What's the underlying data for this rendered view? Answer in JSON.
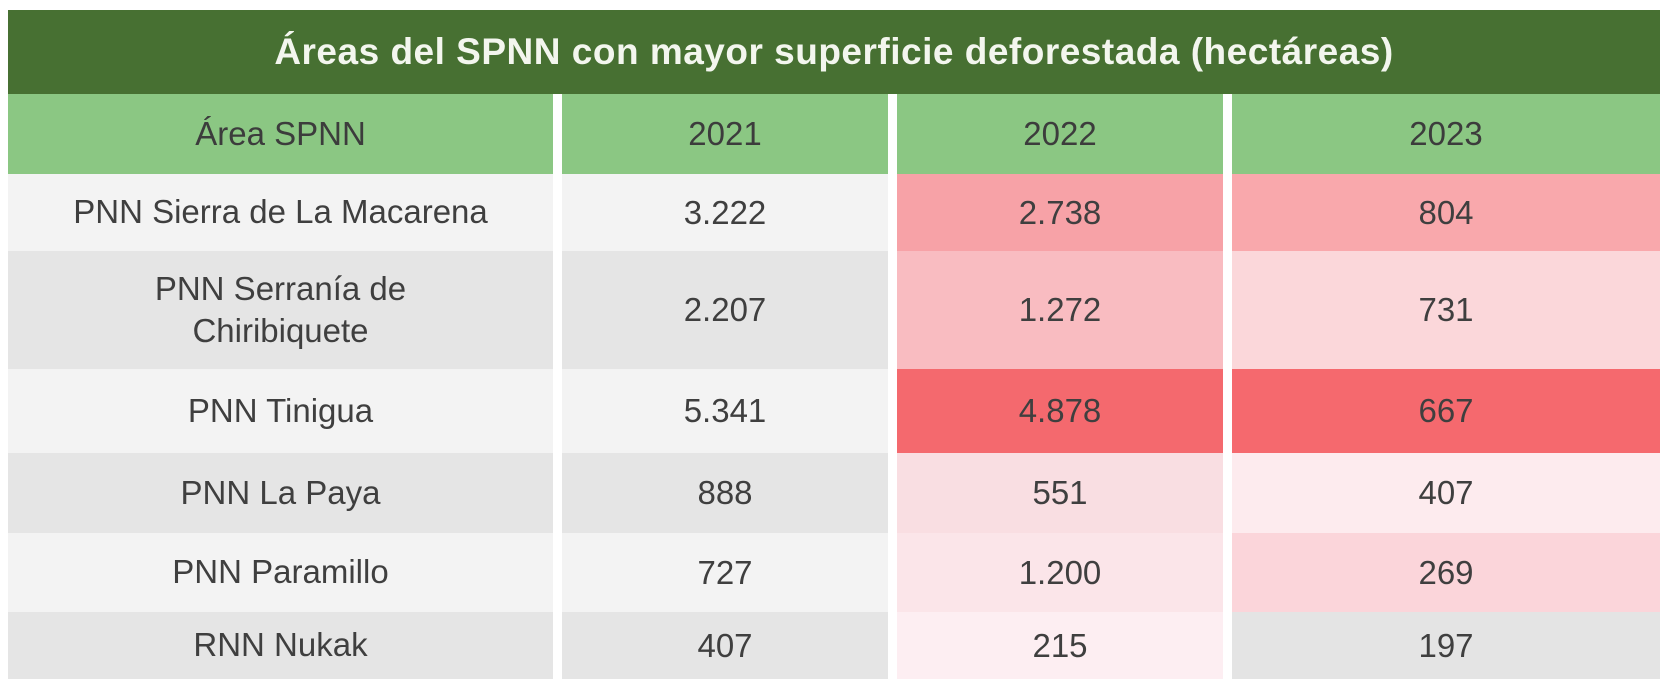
{
  "table": {
    "title": "Áreas del SPNN con mayor superficie deforestada (hectáreas)",
    "columns": [
      "Área SPNN",
      "2021",
      "2022",
      "2023"
    ],
    "rows": [
      {
        "area": "PNN Sierra de La Macarena",
        "v2021": "3.222",
        "v2022": "2.738",
        "v2023": "804",
        "c2022": "#f7a2a7",
        "c2023": "#f9a8ac"
      },
      {
        "area": "PNN Serranía de\nChiribiquete",
        "v2021": "2.207",
        "v2022": "1.272",
        "v2023": "731",
        "c2022": "#f9bcc1",
        "c2023": "#fbd7da"
      },
      {
        "area": "PNN Tinigua",
        "v2021": "5.341",
        "v2022": "4.878",
        "v2023": "667",
        "c2022": "#f4696e",
        "c2023": "#f5696e"
      },
      {
        "area": "PNN La Paya",
        "v2021": "888",
        "v2022": "551",
        "v2023": "407",
        "c2022": "#f9dee2",
        "c2023": "#fdebee"
      },
      {
        "area": "PNN Paramillo",
        "v2021": "727",
        "v2022": "1.200",
        "v2023": "269",
        "c2022": "#fbe5e9",
        "c2023": "#fbd5da"
      },
      {
        "area": "RNN Nukak",
        "v2021": "407",
        "v2022": "215",
        "v2023": "197",
        "c2022": "#fdeef2",
        "c2023": "#e4e4e4"
      }
    ],
    "style": {
      "title_bg": "#477032",
      "title_text": "#f3f6ee",
      "header_bg": "#8bc783",
      "header_text": "#3c3c3c",
      "row_odd": "#f3f3f3",
      "row_even": "#e5e5e5",
      "text": "#3f3f3f",
      "max_red": "#f4696e",
      "mid_red": "#f7a2a7"
    }
  },
  "chart_data": {
    "type": "table",
    "title": "Áreas del SPNN con mayor superficie deforestada (hectáreas)",
    "columns": [
      "Área SPNN",
      "2021",
      "2022",
      "2023"
    ],
    "rows": [
      [
        "PNN Sierra de La Macarena",
        3222,
        2738,
        804
      ],
      [
        "PNN Serranía de Chiribiquete",
        2207,
        1272,
        731
      ],
      [
        "PNN Tinigua",
        5341,
        4878,
        667
      ],
      [
        "PNN La Paya",
        888,
        551,
        407
      ],
      [
        "PNN Paramillo",
        727,
        1200,
        269
      ],
      [
        "RNN Nukak",
        407,
        215,
        197
      ]
    ],
    "value_format": "thousands separated by dot, hectares",
    "conditional_formatting": "2022 and 2023 cells shaded white-pink to red by deforested area; 197 cell unshaded gray",
    "legend": "none",
    "grid": "alternating gray rows for Área SPNN and 2021 columns, white vertical gaps between columns"
  }
}
